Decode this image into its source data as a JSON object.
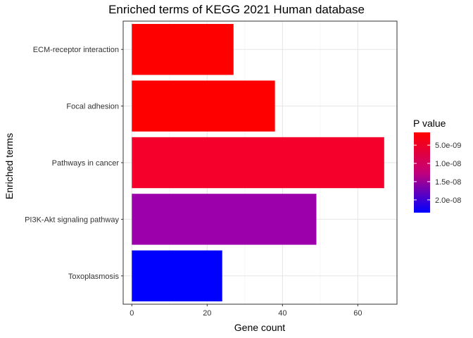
{
  "chart_data": {
    "type": "bar",
    "orientation": "horizontal",
    "title": "Enriched terms of KEGG 2021 Human database",
    "xlabel": "Gene count",
    "ylabel": "Enriched terms",
    "xlim": [
      -2.3,
      70.4
    ],
    "x_ticks": [
      0,
      20,
      40,
      60
    ],
    "x_tick_labels": [
      "0",
      "20",
      "40",
      "60"
    ],
    "grid": true,
    "categories": [
      "ECM-receptor interaction",
      "Focal adhesion",
      "Pathways in cancer",
      "PI3K-Akt signaling pathway",
      "Toxoplasmosis"
    ],
    "values": [
      27,
      38,
      67,
      49,
      24
    ],
    "p_values": [
      2e-09,
      2.5e-09,
      4e-09,
      1.45e-08,
      2.3e-08
    ],
    "colors": [
      "#FF0000",
      "#FF0000",
      "#F5002A",
      "#9B00AA",
      "#0000FF"
    ],
    "legend": {
      "title": "P value",
      "position": "right",
      "ticks": [
        5e-09,
        1e-08,
        1.5e-08,
        2e-08
      ],
      "tick_labels": [
        "5.0e-09",
        "1.0e-08",
        "1.5e-08",
        "2.0e-08"
      ],
      "range": [
        1.5e-09,
        2.35e-08
      ],
      "low_color": "#FF0000",
      "high_color": "#0000FF"
    }
  }
}
